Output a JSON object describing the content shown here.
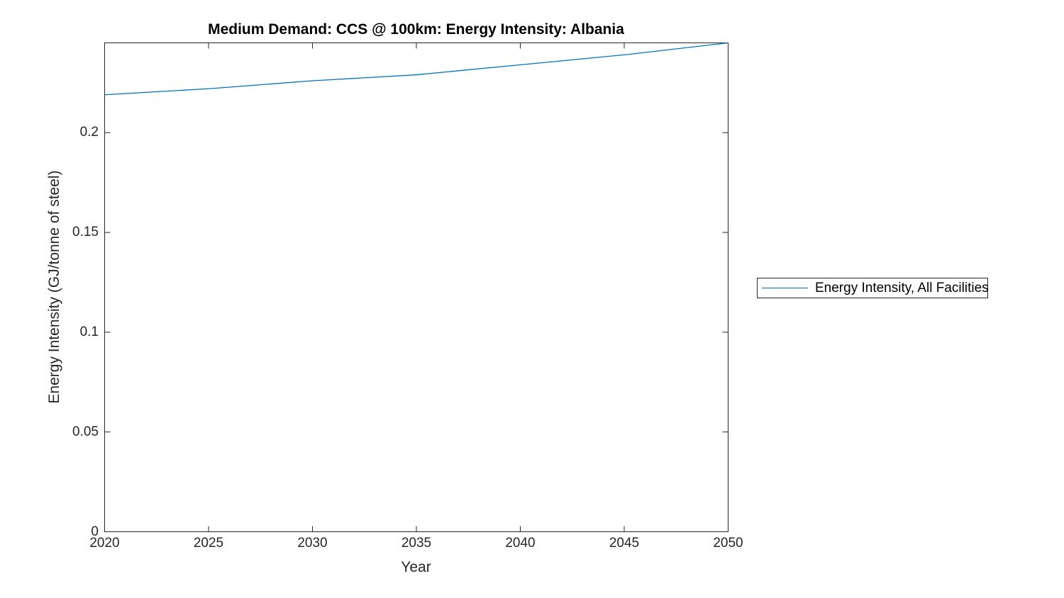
{
  "chart_data": {
    "type": "line",
    "title": "Medium Demand: CCS @ 100km: Energy Intensity: Albania",
    "xlabel": "Year",
    "ylabel": "Energy Intensity (GJ/tonne of steel)",
    "x": [
      2020,
      2025,
      2030,
      2035,
      2040,
      2045,
      2050
    ],
    "series": [
      {
        "name": "Energy Intensity, All Facilities",
        "color": "#0072BD",
        "values": [
          0.219,
          0.222,
          0.226,
          0.229,
          0.234,
          0.239,
          0.245
        ]
      }
    ],
    "xlim": [
      2020,
      2050
    ],
    "ylim": [
      0,
      0.245
    ],
    "xticks": {
      "values": [
        2020,
        2025,
        2030,
        2035,
        2040,
        2045,
        2050
      ],
      "labels": [
        "2020",
        "2025",
        "2030",
        "2035",
        "2040",
        "2045",
        "2050"
      ]
    },
    "yticks": {
      "values": [
        0,
        0.05,
        0.1,
        0.15,
        0.2
      ],
      "labels": [
        "0",
        "0.05",
        "0.1",
        "0.15",
        "0.2"
      ]
    },
    "grid": false,
    "box": true,
    "tick_direction": "in",
    "axis_color": "#262626",
    "background_color": "#ffffff",
    "legend": {
      "position": "outside-right",
      "entries": [
        "Energy Intensity, All Facilities"
      ]
    }
  }
}
